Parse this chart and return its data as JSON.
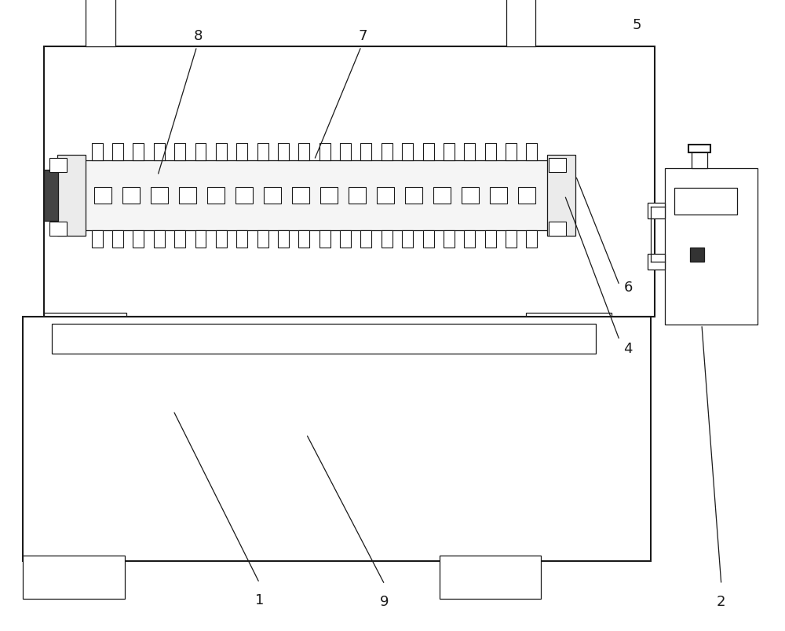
{
  "bg_color": "#ffffff",
  "line_color": "#1a1a1a",
  "lw_main": 1.5,
  "lw_thin": 0.9,
  "fig_width": 10.0,
  "fig_height": 8.04,
  "label_fontsize": 13
}
